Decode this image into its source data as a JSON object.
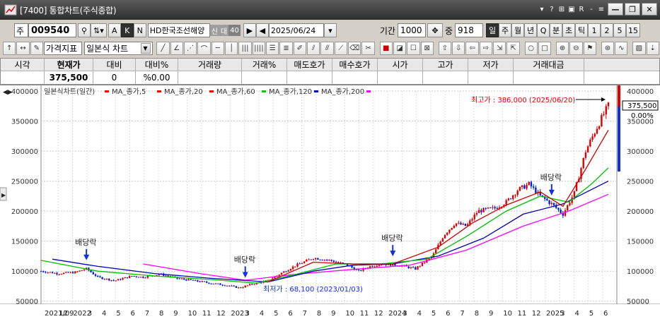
{
  "window": {
    "title": "[7400]  통합차트(주식종합)",
    "controls": [
      "?",
      "▾",
      "?",
      "🗐",
      "R",
      "-",
      "?"
    ],
    "min": "—",
    "restore": "❐",
    "close": "✕"
  },
  "toolbar": {
    "market": "주",
    "code": "009540",
    "btn_a": "A",
    "btn_k": "K",
    "btn_n": "N",
    "stock_name": "HD한국조선해양",
    "tag1": "신",
    "tag2": "대",
    "tag3": "40",
    "date": "2025/06/24",
    "period_label": "기간",
    "period_value": "1000",
    "count_label": "중",
    "count_value": "918",
    "intervals": [
      "일",
      "주",
      "월",
      "년",
      "Q",
      "분",
      "초",
      "틱",
      "1",
      "2",
      "5",
      "15"
    ]
  },
  "toolbar2": {
    "price_indicator": "가격지표",
    "chart_type": "일본식 차트"
  },
  "quote": {
    "headers": [
      "시각",
      "현재가",
      "대비",
      "대비%",
      "거래량",
      "거래%",
      "매도호가",
      "매수호가",
      "시가",
      "고가",
      "저가",
      "거래대금"
    ],
    "values": [
      "",
      "375,500",
      "0",
      "%0.00",
      "",
      "",
      "",
      "",
      "",
      "",
      "",
      ""
    ]
  },
  "chart_data": {
    "type": "candlestick",
    "title": "일본식차트(일간)",
    "legend": [
      {
        "name": "MA_종가,5",
        "color": "#ff0000"
      },
      {
        "name": "MA_종가,20",
        "color": "#ff0000"
      },
      {
        "name": "MA_종가,60",
        "color": "#ff0000"
      },
      {
        "name": "MA_종가,120",
        "color": "#00cc00"
      },
      {
        "name": "MA_종가,200",
        "color": "#0000cc"
      },
      {
        "name": "",
        "color": "#ff00ff"
      }
    ],
    "y_ticks": [
      50000,
      100000,
      150000,
      200000,
      250000,
      300000,
      350000,
      400000
    ],
    "y_tick_labels": [
      "50000",
      "100000",
      "150000",
      "200000",
      "250000",
      "300000",
      "350000",
      "400000"
    ],
    "ylim": [
      45000,
      400000
    ],
    "x_labels": [
      "2021/09",
      "12",
      "2022",
      "3",
      "4",
      "5",
      "6",
      "7",
      "8",
      "9",
      "10",
      "11",
      "12",
      "2023",
      "3",
      "4",
      "5",
      "6",
      "7",
      "8",
      "9",
      "10",
      "11",
      "12",
      "2024",
      "3",
      "4",
      "5",
      "6",
      "7",
      "8",
      "9",
      "10",
      "11",
      "12",
      "2025",
      "3",
      "4",
      "5",
      "6"
    ],
    "close_series": [
      {
        "t": 0.0,
        "v": 100000
      },
      {
        "t": 0.03,
        "v": 96000
      },
      {
        "t": 0.06,
        "v": 98000
      },
      {
        "t": 0.08,
        "v": 104000
      },
      {
        "t": 0.1,
        "v": 90000
      },
      {
        "t": 0.13,
        "v": 84000
      },
      {
        "t": 0.16,
        "v": 92000
      },
      {
        "t": 0.18,
        "v": 90000
      },
      {
        "t": 0.21,
        "v": 95000
      },
      {
        "t": 0.24,
        "v": 88000
      },
      {
        "t": 0.27,
        "v": 84000
      },
      {
        "t": 0.3,
        "v": 80000
      },
      {
        "t": 0.33,
        "v": 76000
      },
      {
        "t": 0.35,
        "v": 72000
      },
      {
        "t": 0.37,
        "v": 78000
      },
      {
        "t": 0.4,
        "v": 84000
      },
      {
        "t": 0.42,
        "v": 95000
      },
      {
        "t": 0.45,
        "v": 110000
      },
      {
        "t": 0.48,
        "v": 122000
      },
      {
        "t": 0.51,
        "v": 118000
      },
      {
        "t": 0.54,
        "v": 110000
      },
      {
        "t": 0.56,
        "v": 100000
      },
      {
        "t": 0.58,
        "v": 108000
      },
      {
        "t": 0.6,
        "v": 112000
      },
      {
        "t": 0.63,
        "v": 110000
      },
      {
        "t": 0.66,
        "v": 104000
      },
      {
        "t": 0.69,
        "v": 125000
      },
      {
        "t": 0.71,
        "v": 160000
      },
      {
        "t": 0.73,
        "v": 180000
      },
      {
        "t": 0.75,
        "v": 175000
      },
      {
        "t": 0.77,
        "v": 200000
      },
      {
        "t": 0.8,
        "v": 205000
      },
      {
        "t": 0.82,
        "v": 215000
      },
      {
        "t": 0.84,
        "v": 235000
      },
      {
        "t": 0.86,
        "v": 245000
      },
      {
        "t": 0.88,
        "v": 225000
      },
      {
        "t": 0.9,
        "v": 212000
      },
      {
        "t": 0.92,
        "v": 195000
      },
      {
        "t": 0.94,
        "v": 230000
      },
      {
        "t": 0.96,
        "v": 300000
      },
      {
        "t": 0.98,
        "v": 340000
      },
      {
        "t": 1.0,
        "v": 375500
      }
    ],
    "ma120": [
      {
        "t": 0.0,
        "v": 118000
      },
      {
        "t": 0.1,
        "v": 100000
      },
      {
        "t": 0.2,
        "v": 92000
      },
      {
        "t": 0.3,
        "v": 86000
      },
      {
        "t": 0.38,
        "v": 80000
      },
      {
        "t": 0.45,
        "v": 95000
      },
      {
        "t": 0.52,
        "v": 112000
      },
      {
        "t": 0.6,
        "v": 112000
      },
      {
        "t": 0.68,
        "v": 120000
      },
      {
        "t": 0.75,
        "v": 158000
      },
      {
        "t": 0.82,
        "v": 200000
      },
      {
        "t": 0.88,
        "v": 225000
      },
      {
        "t": 0.93,
        "v": 215000
      },
      {
        "t": 0.97,
        "v": 245000
      },
      {
        "t": 1.0,
        "v": 272000
      }
    ],
    "ma200": [
      {
        "t": 0.02,
        "v": 120000
      },
      {
        "t": 0.1,
        "v": 108000
      },
      {
        "t": 0.2,
        "v": 96000
      },
      {
        "t": 0.3,
        "v": 88000
      },
      {
        "t": 0.4,
        "v": 82000
      },
      {
        "t": 0.48,
        "v": 100000
      },
      {
        "t": 0.55,
        "v": 110000
      },
      {
        "t": 0.62,
        "v": 112000
      },
      {
        "t": 0.7,
        "v": 125000
      },
      {
        "t": 0.78,
        "v": 155000
      },
      {
        "t": 0.85,
        "v": 195000
      },
      {
        "t": 0.92,
        "v": 212000
      },
      {
        "t": 1.0,
        "v": 250000
      }
    ],
    "ma_magenta": [
      {
        "t": 0.18,
        "v": 112000
      },
      {
        "t": 0.28,
        "v": 96000
      },
      {
        "t": 0.36,
        "v": 85000
      },
      {
        "t": 0.45,
        "v": 95000
      },
      {
        "t": 0.55,
        "v": 103000
      },
      {
        "t": 0.65,
        "v": 110000
      },
      {
        "t": 0.75,
        "v": 135000
      },
      {
        "t": 0.85,
        "v": 175000
      },
      {
        "t": 0.93,
        "v": 200000
      },
      {
        "t": 1.0,
        "v": 228000
      }
    ],
    "ma60": [
      {
        "t": 0.4,
        "v": 82000
      },
      {
        "t": 0.48,
        "v": 115000
      },
      {
        "t": 0.55,
        "v": 112000
      },
      {
        "t": 0.62,
        "v": 112000
      },
      {
        "t": 0.7,
        "v": 140000
      },
      {
        "t": 0.76,
        "v": 180000
      },
      {
        "t": 0.82,
        "v": 210000
      },
      {
        "t": 0.88,
        "v": 232000
      },
      {
        "t": 0.92,
        "v": 208000
      },
      {
        "t": 0.96,
        "v": 270000
      },
      {
        "t": 1.0,
        "v": 335000
      }
    ],
    "annotations": {
      "dividend_label": "배당락",
      "dividend_positions": [
        0.08,
        0.36,
        0.62,
        0.9
      ],
      "high_label": "최고가 : 386,000 (2025/06/20)",
      "low_label": "최저가 : 68,100 (2023/01/03)",
      "current_price": "375,500",
      "current_change": "0.00%"
    }
  }
}
